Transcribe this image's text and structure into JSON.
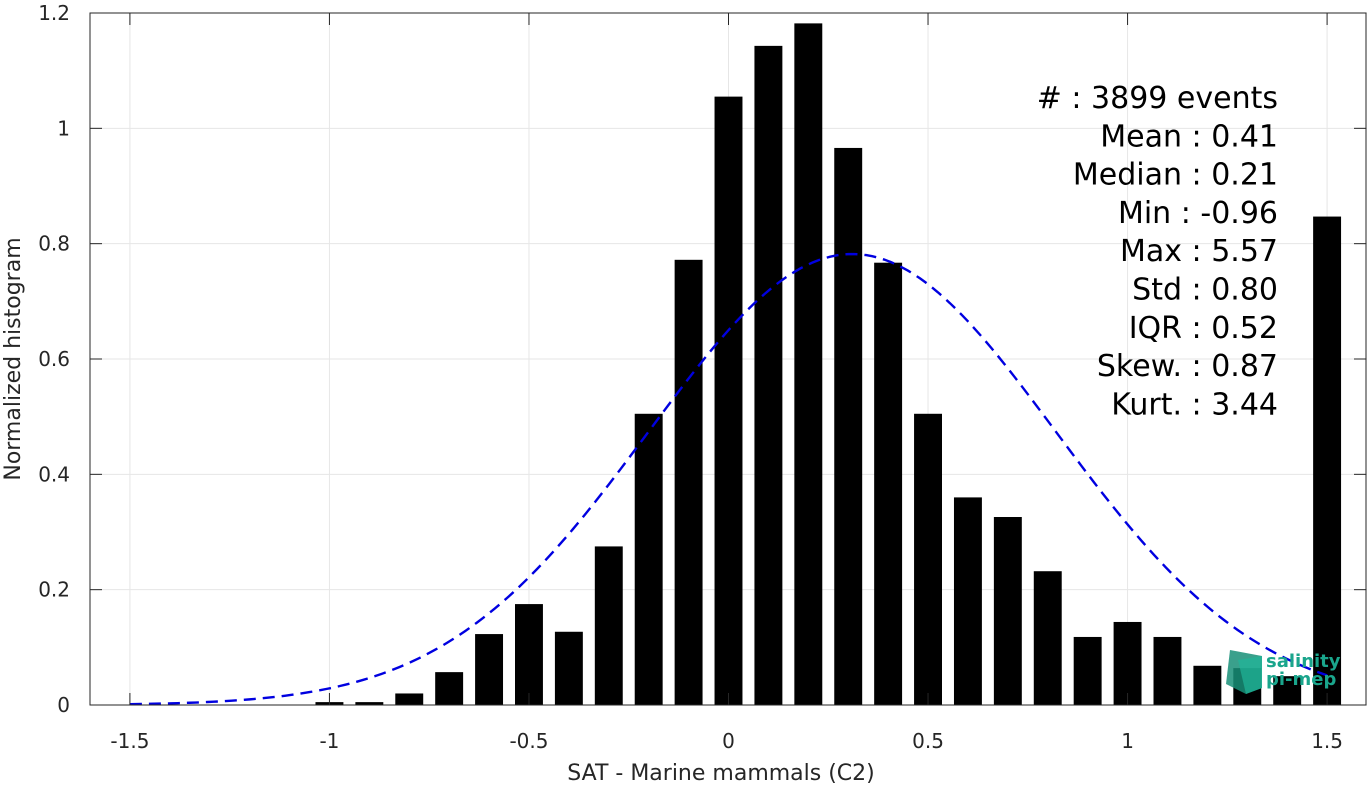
{
  "chart_data": {
    "type": "bar",
    "xlabel": "SAT - Marine mammals (C2)",
    "ylabel": "Normalized histogram",
    "xlim": [
      -1.6,
      1.6
    ],
    "ylim": [
      0,
      1.2
    ],
    "xticks": [
      -1.5,
      -1,
      -0.5,
      0,
      0.5,
      1,
      1.5
    ],
    "xtick_labels": [
      "-1.5",
      "-1",
      "-0.5",
      "0",
      "0.5",
      "1",
      "1.5"
    ],
    "yticks": [
      0,
      0.2,
      0.4,
      0.6,
      0.8,
      1.0,
      1.2
    ],
    "ytick_labels": [
      "0",
      "0.2",
      "0.4",
      "0.6",
      "0.8",
      "1",
      "1.2"
    ],
    "grid": true,
    "bar_color": "#000000",
    "bar_width": 0.07,
    "histogram": {
      "x": [
        -1.0,
        -0.9,
        -0.8,
        -0.7,
        -0.6,
        -0.5,
        -0.4,
        -0.3,
        -0.2,
        -0.1,
        0.0,
        0.1,
        0.2,
        0.3,
        0.4,
        0.5,
        0.6,
        0.7,
        0.8,
        0.9,
        1.0,
        1.1,
        1.2,
        1.3,
        1.4,
        1.5
      ],
      "values": [
        0.005,
        0.005,
        0.02,
        0.057,
        0.123,
        0.175,
        0.127,
        0.275,
        0.505,
        0.772,
        1.055,
        1.143,
        1.182,
        0.966,
        0.767,
        0.505,
        0.36,
        0.326,
        0.232,
        0.118,
        0.144,
        0.118,
        0.068,
        0.064,
        0.05,
        0.847
      ]
    },
    "gaussian_fit": {
      "mean": 0.31,
      "std": 0.51,
      "peak": 0.782,
      "x_start": -1.5,
      "x_end": 1.5,
      "color": "#0000e0",
      "style": "dashed"
    },
    "annotation": {
      "lines": [
        "#  : 3899 events",
        "Mean : 0.41",
        "Median : 0.21",
        "Min : -0.96",
        "Max : 5.57",
        "Std : 0.80",
        "IQR : 0.52",
        "Skew. : 0.87",
        "Kurt. : 3.44"
      ],
      "placement": "top-right"
    },
    "logo": {
      "line1": "salinity",
      "line2": "pi-mep",
      "color": "#1aa58c"
    }
  }
}
